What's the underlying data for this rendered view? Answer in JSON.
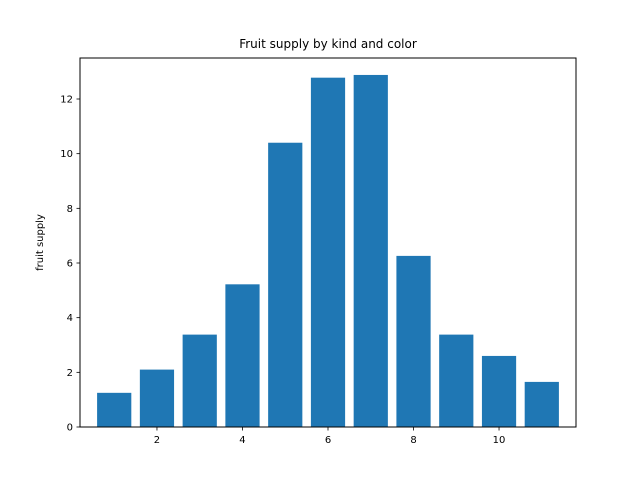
{
  "chart_data": {
    "type": "bar",
    "title": "Fruit supply by kind and color",
    "xlabel": "",
    "ylabel": "fruit supply",
    "x": [
      1,
      2,
      3,
      4,
      5,
      6,
      7,
      8,
      9,
      10,
      11
    ],
    "values": [
      1.25,
      2.1,
      3.38,
      5.22,
      10.4,
      12.78,
      12.88,
      6.26,
      3.38,
      2.6,
      1.65
    ],
    "xlim": [
      0.2,
      11.8
    ],
    "ylim": [
      0,
      13.5
    ],
    "xticks": [
      2,
      4,
      6,
      8,
      10
    ],
    "yticks": [
      0,
      2,
      4,
      6,
      8,
      10,
      12
    ],
    "bar_color": "#1f77b4",
    "grid": false,
    "legend": "none"
  }
}
